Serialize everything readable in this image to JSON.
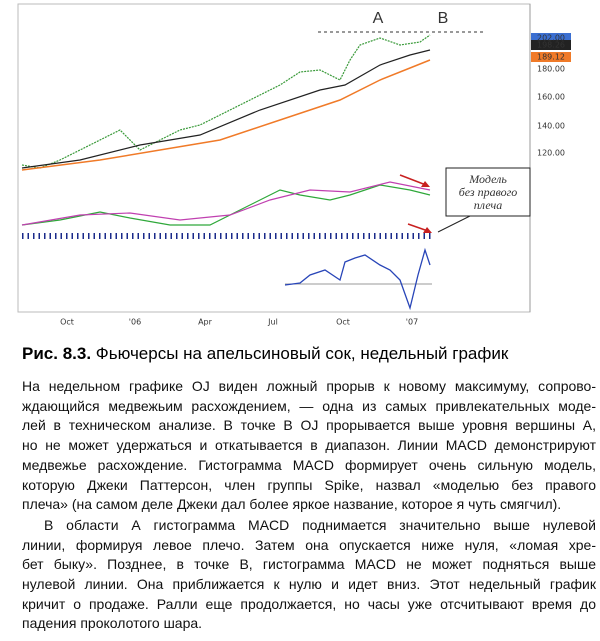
{
  "figure": {
    "annotations": [
      "A",
      "B"
    ],
    "y_axis_labels": [
      "202.00",
      "198.26",
      "189.12",
      "180.00",
      "160.00",
      "140.00",
      "120.00"
    ],
    "x_axis_labels": [
      "Oct",
      "'06",
      "Apr",
      "Jul",
      "Oct",
      "'07"
    ],
    "callout_lines": [
      "Модель",
      "без правого",
      "плеча"
    ]
  },
  "caption": {
    "label": "Рис. 8.3.",
    "text": "Фьючерсы на апельсиновый сок, недельный график"
  },
  "paragraphs": [
    {
      "lines": [
        "На недельном графике OJ виден ложный прорыв к новому максимуму, сопрово-",
        "ждающийся медвежьим расхождением, — одна из самых привлекательных моде-",
        "лей в техническом анализе. В точке В OJ прорывается выше уровня вершины А,",
        "но не может удержаться и откатывается в диапазон. Линии MACD демонстрируют",
        "медвежье расхождение. Гистограмма MACD формирует очень сильную модель,",
        "которую Джеки Паттерсон, член группы Spike, назвал «моделью без правого",
        "плеча» (на самом деле Джеки дал более яркое название, которое я чуть смягчил)."
      ]
    },
    {
      "lines": [
        "В области А гистограмма MACD поднимается значительно выше нулевой",
        "линии, формируя левое плечо. Затем она опускается ниже нуля, «ломая хре-",
        "бет быку». Позднее, в точке В, гистограмма MACD не может подняться выше",
        "нулевой линии. Она приближается к нулю и идет вниз. Этот недельный график",
        "кричит о продаже. Ралли еще продолжается, но часы уже отсчитывают время до",
        "падения проколотого шара."
      ]
    }
  ]
}
